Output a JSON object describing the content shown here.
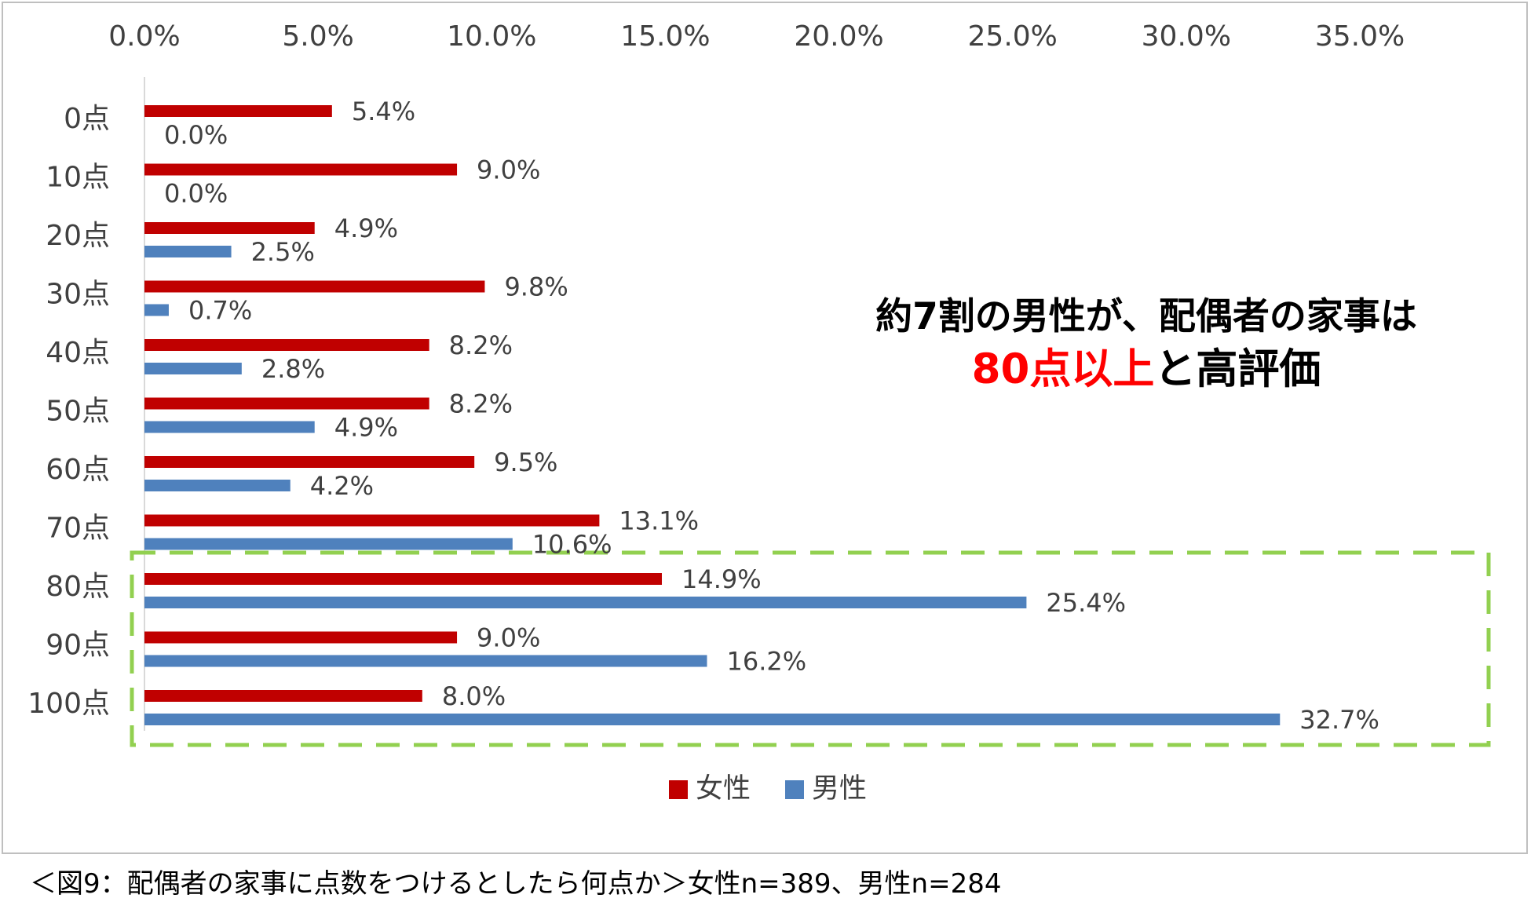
{
  "chart_data": {
    "type": "bar",
    "orientation": "horizontal",
    "categories": [
      "0点",
      "10点",
      "20点",
      "30点",
      "40点",
      "50点",
      "60点",
      "70点",
      "80点",
      "90点",
      "100点"
    ],
    "series": [
      {
        "name": "女性",
        "color": "#c00000",
        "values": [
          5.4,
          9.0,
          4.9,
          9.8,
          8.2,
          8.2,
          9.5,
          13.1,
          14.9,
          9.0,
          8.0
        ],
        "labels": [
          "5.4%",
          "9.0%",
          "4.9%",
          "9.8%",
          "8.2%",
          "8.2%",
          "9.5%",
          "13.1%",
          "14.9%",
          "9.0%",
          "8.0%"
        ]
      },
      {
        "name": "男性",
        "color": "#4f81bd",
        "values": [
          0.0,
          0.0,
          2.5,
          0.7,
          2.8,
          4.9,
          4.2,
          10.6,
          25.4,
          16.2,
          32.7
        ],
        "labels": [
          "0.0%",
          "0.0%",
          "2.5%",
          "0.7%",
          "2.8%",
          "4.9%",
          "4.2%",
          "10.6%",
          "25.4%",
          "16.2%",
          "32.7%"
        ]
      }
    ],
    "xlim": [
      0,
      35
    ],
    "x_tick_labels": [
      "0.0%",
      "5.0%",
      "10.0%",
      "15.0%",
      "20.0%",
      "25.0%",
      "30.0%",
      "35.0%"
    ],
    "x_axis_position": "top",
    "grid": false,
    "legend_position": "bottom",
    "highlight": {
      "categories": [
        "80点",
        "90点",
        "100点"
      ],
      "color": "#92d050",
      "style": "dashed-box"
    }
  },
  "annotation": {
    "line1": "約7割の男性が、配偶者の家事は",
    "line2_highlight": "80点以上",
    "line2_rest": "と高評価"
  },
  "caption": "＜図9：配偶者の家事に点数をつけるとしたら何点か＞女性n=389、男性n=284"
}
